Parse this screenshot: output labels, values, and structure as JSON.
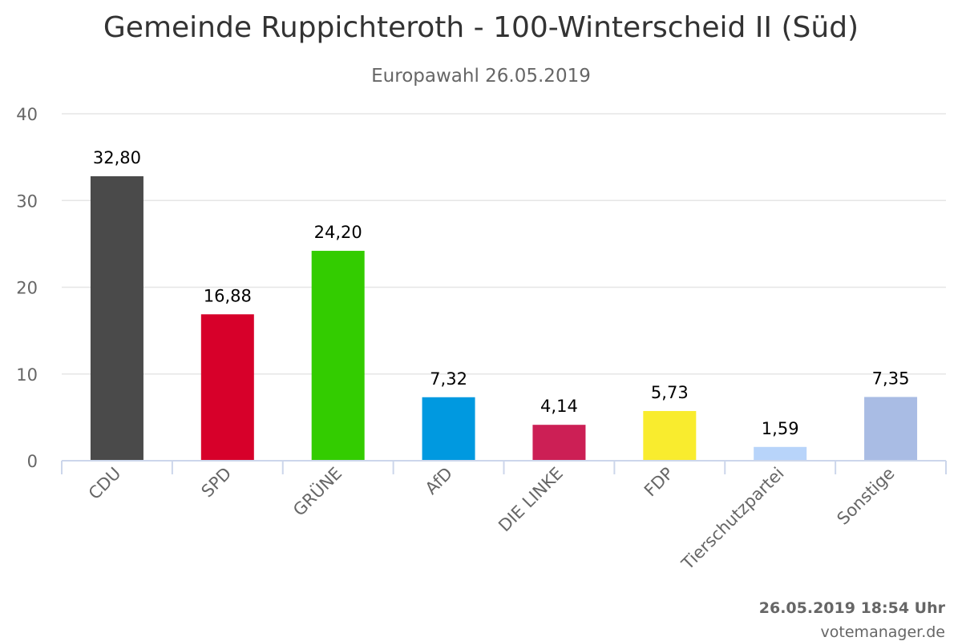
{
  "chart_data": {
    "type": "bar",
    "title": "Gemeinde Ruppichteroth - 100-Winterscheid II (Süd)",
    "subtitle": "Europawahl 26.05.2019",
    "categories": [
      "CDU",
      "SPD",
      "GRÜNE",
      "AfD",
      "DIE LINKE",
      "FDP",
      "Tierschutzpartei",
      "Sonstige"
    ],
    "values": [
      32.8,
      16.88,
      24.2,
      7.32,
      4.14,
      5.73,
      1.59,
      7.35
    ],
    "data_labels": [
      "32,80",
      "16,88",
      "24,20",
      "7,32",
      "4,14",
      "5,73",
      "1,59",
      "7,35"
    ],
    "colors": [
      "#4a4a4a",
      "#d7002a",
      "#33cc00",
      "#0099e0",
      "#cc1f55",
      "#f9ec2e",
      "#b8d4fa",
      "#a9bce4"
    ],
    "ylim": [
      0,
      40
    ],
    "yticks": [
      0,
      10,
      20,
      30,
      40
    ],
    "grid": true,
    "legend": "none"
  },
  "footer": {
    "timestamp": "26.05.2019 18:54 Uhr",
    "source": "votemanager.de"
  }
}
